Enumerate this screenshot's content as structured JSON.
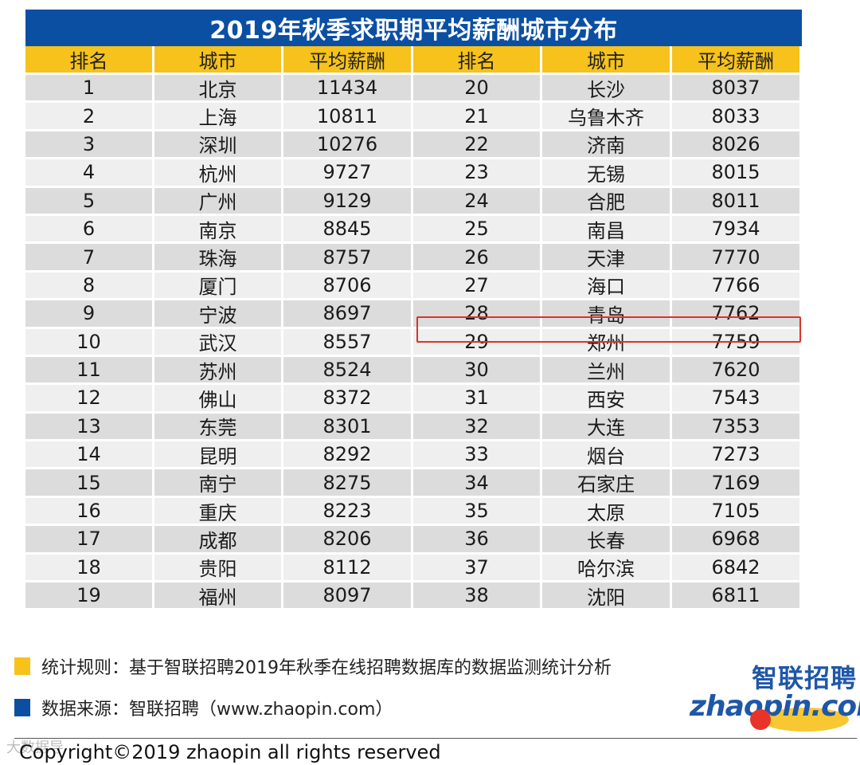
{
  "title": "2019年秋季求职期平均薪酬城市分布",
  "headers": [
    "排名",
    "城市",
    "平均薪酬",
    "排名",
    "城市",
    "平均薪酬"
  ],
  "rows": [
    [
      "1",
      "北京",
      "11434",
      "20",
      "长沙",
      "8037"
    ],
    [
      "2",
      "上海",
      "10811",
      "21",
      "乌鲁木齐",
      "8033"
    ],
    [
      "3",
      "深圳",
      "10276",
      "22",
      "济南",
      "8026"
    ],
    [
      "4",
      "杭州",
      "9727",
      "23",
      "无锡",
      "8015"
    ],
    [
      "5",
      "广州",
      "9129",
      "24",
      "合肥",
      "8011"
    ],
    [
      "6",
      "南京",
      "8845",
      "25",
      "南昌",
      "7934"
    ],
    [
      "7",
      "珠海",
      "8757",
      "26",
      "天津",
      "7770"
    ],
    [
      "8",
      "厦门",
      "8706",
      "27",
      "海口",
      "7766"
    ],
    [
      "9",
      "宁波",
      "8697",
      "28",
      "青岛",
      "7762"
    ],
    [
      "10",
      "武汉",
      "8557",
      "29",
      "郑州",
      "7759"
    ],
    [
      "11",
      "苏州",
      "8524",
      "30",
      "兰州",
      "7620"
    ],
    [
      "12",
      "佛山",
      "8372",
      "31",
      "西安",
      "7543"
    ],
    [
      "13",
      "东莞",
      "8301",
      "32",
      "大连",
      "7353"
    ],
    [
      "14",
      "昆明",
      "8292",
      "33",
      "烟台",
      "7273"
    ],
    [
      "15",
      "南宁",
      "8275",
      "34",
      "石家庄",
      "7169"
    ],
    [
      "16",
      "重庆",
      "8223",
      "35",
      "太原",
      "7105"
    ],
    [
      "17",
      "成都",
      "8206",
      "36",
      "长春",
      "6968"
    ],
    [
      "18",
      "贵阳",
      "8112",
      "37",
      "哈尔滨",
      "6842"
    ],
    [
      "19",
      "福州",
      "8097",
      "38",
      "沈阳",
      "6811"
    ]
  ],
  "highlighted_row": "28",
  "notes": {
    "rule": "统计规则：基于智联招聘2019年秋季在线招聘数据库的数据监测统计分析",
    "source": "数据来源：智联招聘（www.zhaopin.com）"
  },
  "logo": {
    "cn": "智联招聘",
    "en": "zhaopin.com"
  },
  "watermark": "大数据导",
  "copyright": "Copyright©2019 zhaopin all rights reserved",
  "colors": {
    "title_bg": "#0b4fa3",
    "header_bg": "#f6c21b",
    "highlight_border": "#d9342b"
  }
}
